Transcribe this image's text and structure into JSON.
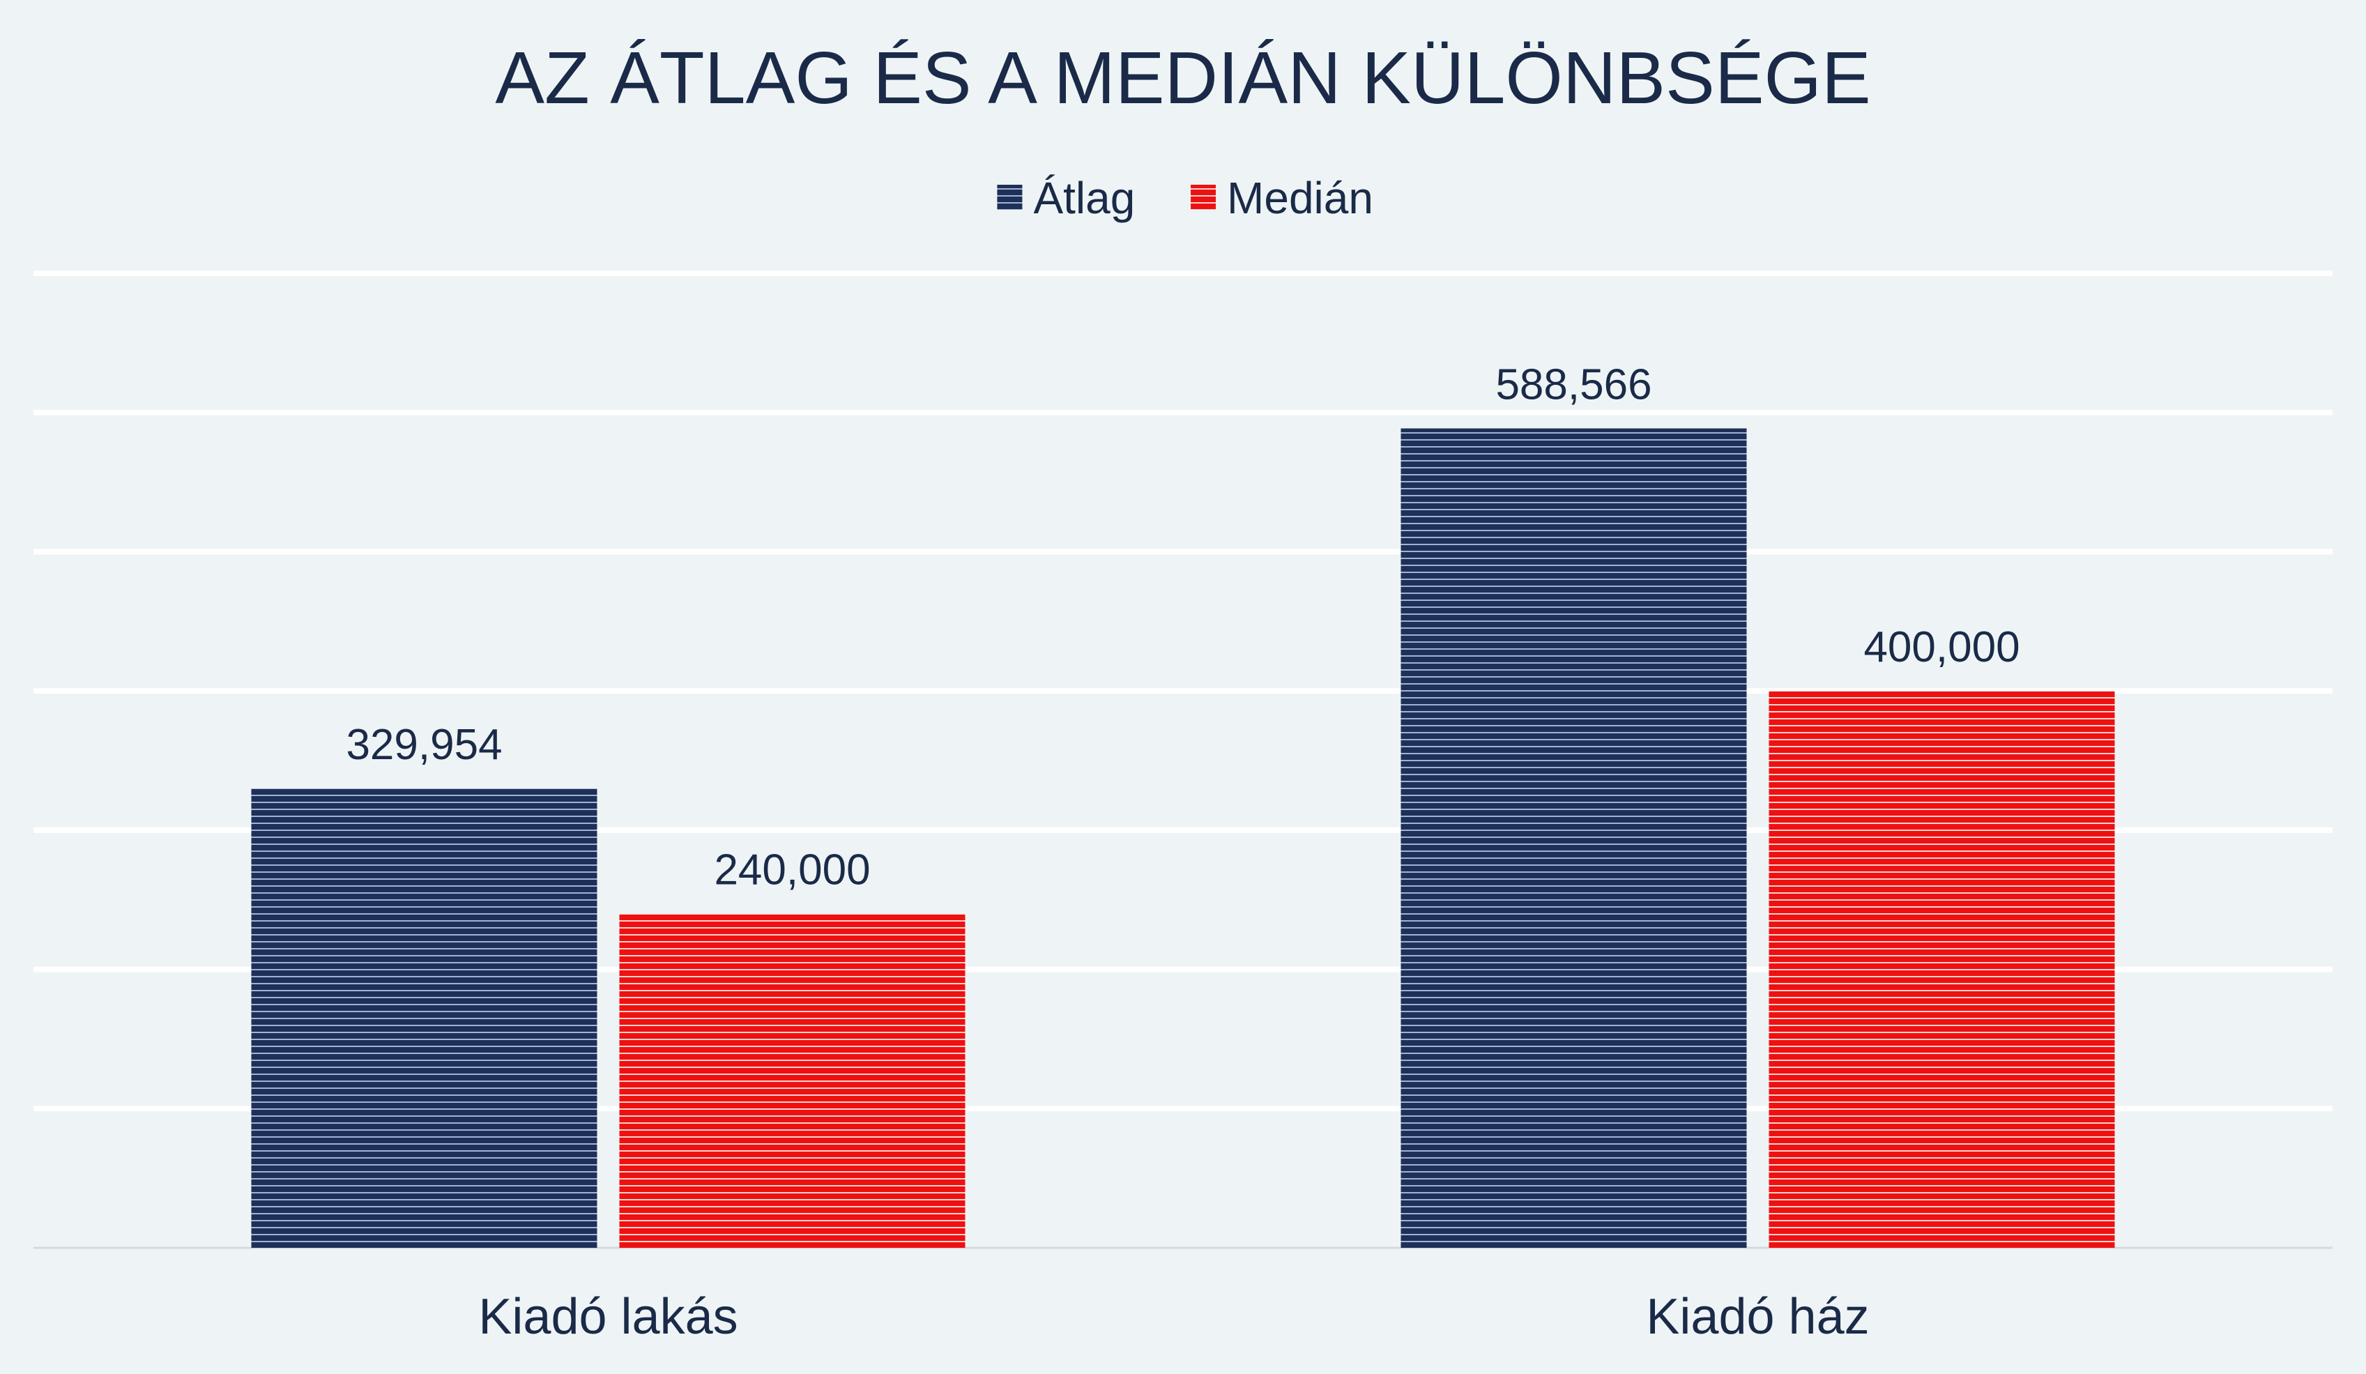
{
  "chart_data": {
    "type": "bar",
    "title": "AZ ÁTLAG ÉS A MEDIÁN KÜLÖNBSÉGE",
    "categories": [
      "Kiadó lakás",
      "Kiadó ház"
    ],
    "series": [
      {
        "name": "Átlag",
        "values": [
          329954,
          588566
        ],
        "labels": [
          "329,954",
          "588,566"
        ],
        "color": "#1f3058",
        "stripe_color": "#9fb4d4"
      },
      {
        "name": "Medián",
        "values": [
          240000,
          400000
        ],
        "labels": [
          "240,000",
          "400,000"
        ],
        "color": "#ee1111",
        "stripe_color": "#ffd2d2"
      }
    ],
    "ylim": [
      0,
      700000
    ],
    "ytick_step": 100000,
    "grid": true,
    "legend_position": "top-center",
    "xlabel": "",
    "ylabel": ""
  }
}
